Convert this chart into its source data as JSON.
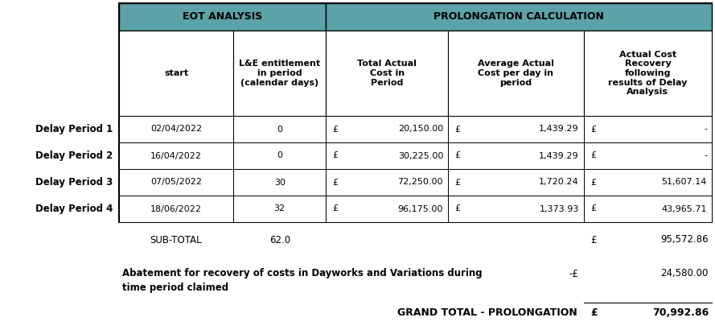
{
  "header_bg": "#5ba3a8",
  "cell_bg": "#ffffff",
  "eot_header": "EOT ANALYSIS",
  "prol_header": "PROLONGATION CALCULATION",
  "col_headers_line1": [
    "",
    "L&E entitlement",
    "Total Actual",
    "Average Actual",
    "Actual Cost"
  ],
  "col_headers_line2": [
    "start",
    "in period",
    "Cost in",
    "Cost per day in",
    "Recovery"
  ],
  "col_headers_line3": [
    "",
    "(calendar days)",
    "Period",
    "period",
    "following"
  ],
  "col_headers_line4": [
    "",
    "",
    "",
    "",
    "results of Delay"
  ],
  "col_headers_line5": [
    "",
    "",
    "",
    "",
    "Analysis"
  ],
  "row_labels": [
    "Delay Period 1",
    "Delay Period 2",
    "Delay Period 3",
    "Delay Period 4"
  ],
  "col0": [
    "02/04/2022",
    "16/04/2022",
    "07/05/2022",
    "18/06/2022"
  ],
  "col1": [
    "0",
    "0",
    "30",
    "32"
  ],
  "col2_pound": [
    "£",
    "£",
    "£",
    "£"
  ],
  "col2_val": [
    "20,150.00",
    "30,225.00",
    "72,250.00",
    "96,175.00"
  ],
  "col3_pound": [
    "£",
    "£",
    "£",
    "£"
  ],
  "col3_val": [
    "1,439.29",
    "1,439.29",
    "1,720.24",
    "1,373.93"
  ],
  "col4_pound": [
    "£",
    "£",
    "£",
    "£"
  ],
  "col4_val": [
    "-",
    "-",
    "51,607.14",
    "43,965.71"
  ],
  "subtotal_label": "SUB-TOTAL",
  "subtotal_days": "62.0",
  "subtotal_pound": "£",
  "subtotal_val": "95,572.86",
  "abatement_line1": "Abatement for recovery of costs in Dayworks and Variations during",
  "abatement_line2": "time period claimed",
  "abatement_pound": "-£",
  "abatement_val": "24,580.00",
  "grand_label": "GRAND TOTAL - PROLONGATION",
  "grand_pound": "£",
  "grand_val": "70,992.86",
  "fig_width": 8.89,
  "fig_height": 4.15,
  "dpi": 100
}
